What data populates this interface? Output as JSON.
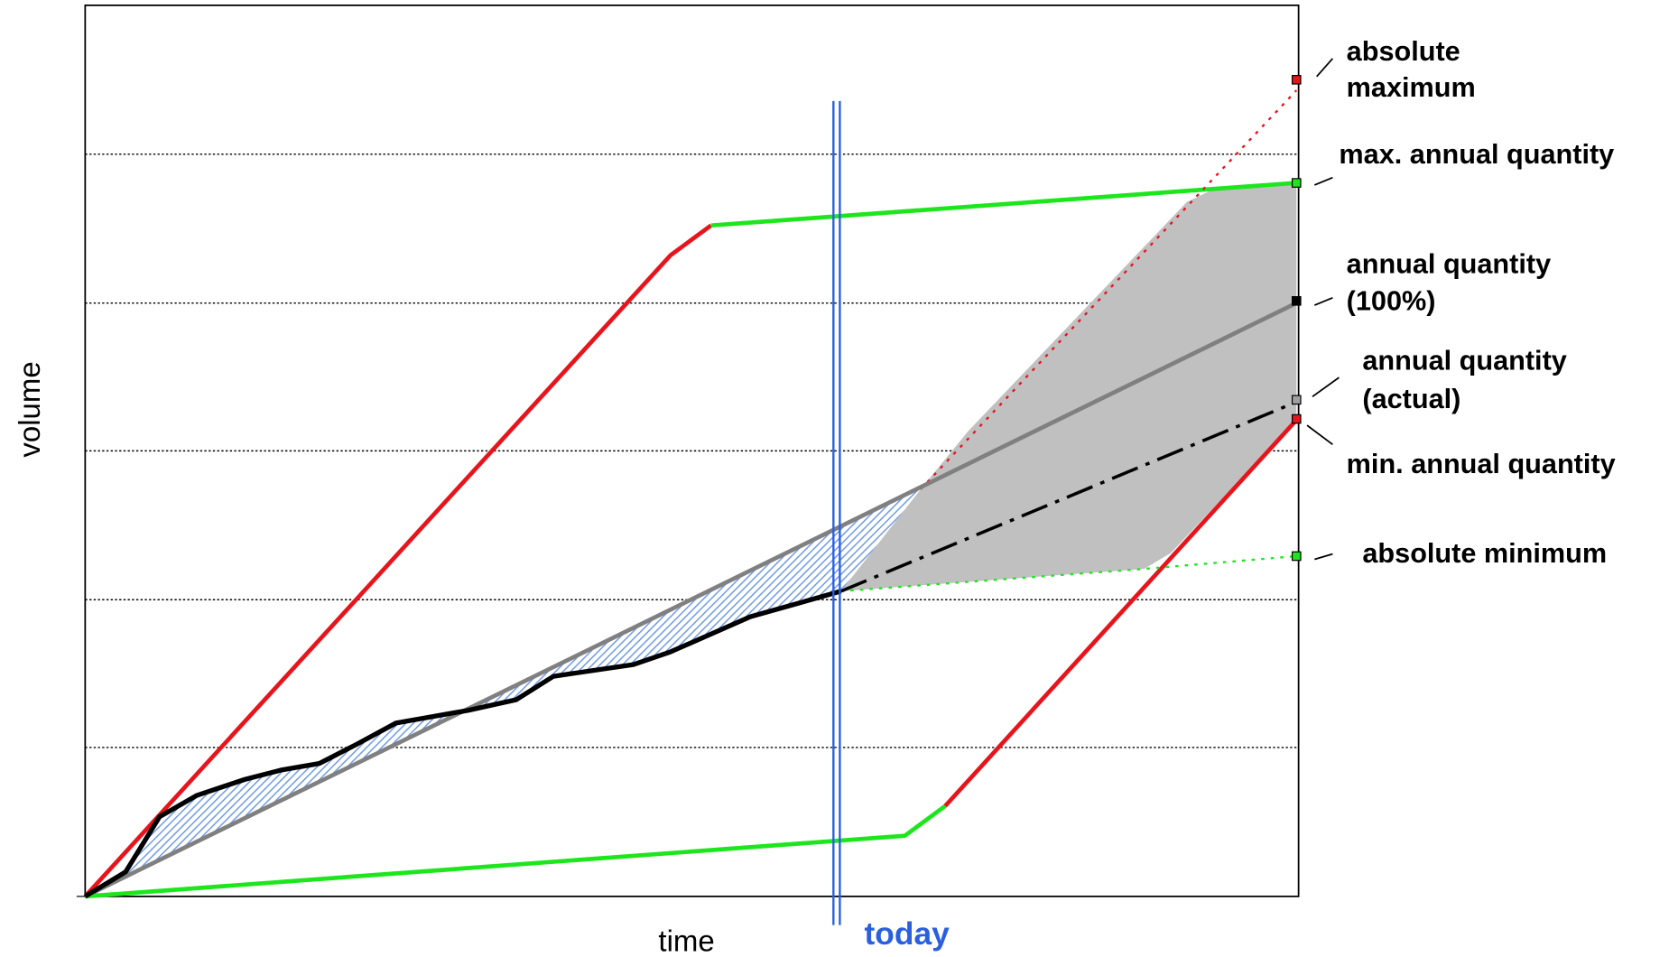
{
  "axis_labels": {
    "x": "time",
    "y": "volume"
  },
  "today_label": "today",
  "annotations": [
    {
      "lines": [
        "absolute",
        "maximum"
      ]
    },
    {
      "lines": [
        "max. annual quantity"
      ]
    },
    {
      "lines": [
        "annual quantity",
        "(100%)"
      ]
    },
    {
      "lines": [
        "annual quantity",
        "(actual)"
      ]
    },
    {
      "lines": [
        "min. annual quantity"
      ]
    },
    {
      "lines": [
        "absolute minimum"
      ]
    }
  ]
}
